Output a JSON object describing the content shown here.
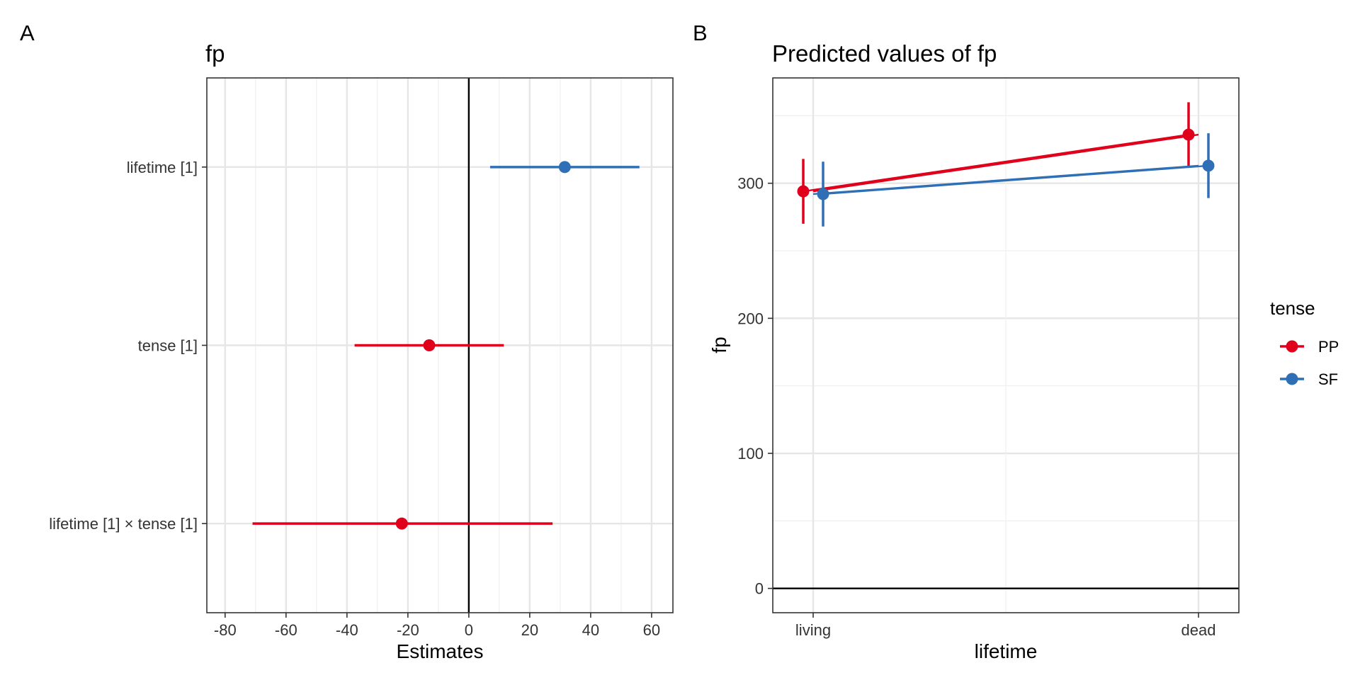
{
  "panel_a": {
    "tag": "A",
    "chart_data": {
      "type": "scatter",
      "subtype": "forest-plot",
      "title": "fp",
      "xlabel": "Estimates",
      "ylabel": "",
      "xlim": [
        -86,
        67
      ],
      "xticks": [
        -80,
        -60,
        -40,
        -20,
        0,
        20,
        40,
        60
      ],
      "reference_line": 0,
      "grid": true,
      "terms": [
        {
          "label": "lifetime [1]",
          "estimate": 31.5,
          "ci_low": 7,
          "ci_high": 56,
          "color": "#2E6FB5"
        },
        {
          "label": "tense [1]",
          "estimate": -13,
          "ci_low": -37.5,
          "ci_high": 11.5,
          "color": "#E0001B"
        },
        {
          "label": "lifetime [1] × tense [1]",
          "estimate": -22,
          "ci_low": -71,
          "ci_high": 27.5,
          "color": "#E0001B"
        }
      ]
    }
  },
  "panel_b": {
    "tag": "B",
    "chart_data": {
      "type": "line",
      "subtype": "predicted-values-with-ci",
      "title": "Predicted values of fp",
      "xlabel": "lifetime",
      "ylabel": "fp",
      "categories": [
        "living",
        "dead"
      ],
      "ylim": [
        -18,
        378
      ],
      "yticks": [
        0,
        100,
        200,
        300
      ],
      "reference_line": 0,
      "grid": true,
      "legend": {
        "title": "tense",
        "position": "right"
      },
      "series": [
        {
          "name": "PP",
          "color": "#E0001B",
          "values": [
            294,
            336
          ],
          "ci_low": [
            270,
            312
          ],
          "ci_high": [
            318,
            360
          ]
        },
        {
          "name": "SF",
          "color": "#2E6FB5",
          "values": [
            292,
            313
          ],
          "ci_low": [
            268,
            289
          ],
          "ci_high": [
            316,
            337
          ]
        }
      ]
    }
  }
}
